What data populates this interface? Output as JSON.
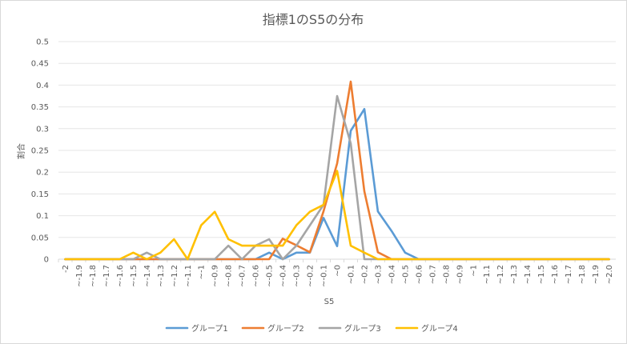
{
  "chart_data": {
    "type": "line",
    "title": "指標1のS5の分布",
    "xlabel": "S5",
    "ylabel": "割合",
    "ylim": [
      0,
      0.5
    ],
    "yticks": [
      "0",
      "0.05",
      "0.1",
      "0.15",
      "0.2",
      "0.25",
      "0.3",
      "0.35",
      "0.4",
      "0.45",
      "0.5"
    ],
    "grid": "horizontal",
    "legend_position": "bottom",
    "categories": [
      "-2",
      "~-1.9",
      "~-1.8",
      "~-1.7",
      "~-1.6",
      "~-1.5",
      "~-1.4",
      "~-1.3",
      "~-1.2",
      "~-1.1",
      "~-1",
      "~-0.9",
      "~-0.8",
      "~-0.7",
      "~-0.6",
      "~-0.5",
      "~-0.4",
      "~-0.3",
      "~-0.2",
      "~-0.1",
      "~0",
      "~0.1",
      "~0.2",
      "~0.3",
      "~0.4",
      "~0.5",
      "~0.6",
      "~0.7",
      "~0.8",
      "~0.9",
      "~1",
      "~1.1",
      "~1.2",
      "~1.3",
      "~1.4",
      "~1.5",
      "~1.6",
      "~1.7",
      "~1.8",
      "~1.9",
      "~2.0"
    ],
    "series": [
      {
        "name": "グループ1",
        "color": "#5b9bd5",
        "values": [
          0,
          0,
          0,
          0,
          0,
          0,
          0,
          0,
          0,
          0,
          0,
          0,
          0,
          0,
          0,
          0.015,
          0,
          0.015,
          0.015,
          0.095,
          0.03,
          0.295,
          0.345,
          0.11,
          0.065,
          0.015,
          0,
          0,
          0,
          0,
          0,
          0,
          0,
          0,
          0,
          0,
          0,
          0,
          0,
          0,
          0
        ]
      },
      {
        "name": "グループ2",
        "color": "#ed7d31",
        "values": [
          0,
          0,
          0,
          0,
          0,
          0,
          0,
          0,
          0,
          0,
          0,
          0,
          0,
          0,
          0,
          0,
          0.047,
          0.032,
          0.016,
          0.11,
          0.22,
          0.408,
          0.156,
          0.016,
          0,
          0,
          0,
          0,
          0,
          0,
          0,
          0,
          0,
          0,
          0,
          0,
          0,
          0,
          0,
          0,
          0
        ]
      },
      {
        "name": "グループ3",
        "color": "#a5a5a5",
        "values": [
          0,
          0,
          0,
          0,
          0,
          0,
          0.015,
          0,
          0,
          0,
          0,
          0,
          0.031,
          0,
          0.031,
          0.046,
          0,
          0.031,
          0.078,
          0.125,
          0.375,
          0.266,
          0,
          0,
          0,
          0,
          0,
          0,
          0,
          0,
          0,
          0,
          0,
          0,
          0,
          0,
          0,
          0,
          0,
          0,
          0
        ]
      },
      {
        "name": "グループ4",
        "color": "#ffc000",
        "values": [
          0,
          0,
          0,
          0,
          0,
          0.015,
          0,
          0.015,
          0.046,
          0,
          0.078,
          0.109,
          0.046,
          0.031,
          0.031,
          0.031,
          0.031,
          0.078,
          0.109,
          0.125,
          0.203,
          0.031,
          0.015,
          0,
          0,
          0,
          0,
          0,
          0,
          0,
          0,
          0,
          0,
          0,
          0,
          0,
          0,
          0,
          0,
          0,
          0
        ]
      }
    ]
  }
}
